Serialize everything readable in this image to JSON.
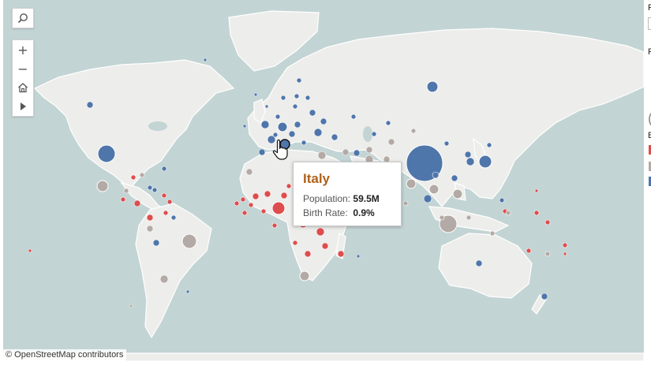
{
  "map": {
    "attribution": "© OpenStreetMap contributors",
    "colors": {
      "water": "#c3d4d4",
      "land": "#ededeb",
      "high_birth_rate": "#de4d4d",
      "mid_birth_rate": "#b4aaa5",
      "low_birth_rate": "#4f76ab"
    }
  },
  "toolbar": {
    "search_icon": "magnifier-icon",
    "zoom_in_label": "+",
    "zoom_out_label": "−",
    "home_icon": "home-icon",
    "expand_icon": "play-arrow-icon"
  },
  "tooltip": {
    "title": "Italy",
    "population_label": "Population:",
    "population_value": "59.5M",
    "birth_rate_label": "Birth Rate:",
    "birth_rate_value": "0.9%"
  },
  "right_panel": {
    "label_1": "R",
    "label_2": "F",
    "label_3": "(",
    "label_4": "B"
  }
}
